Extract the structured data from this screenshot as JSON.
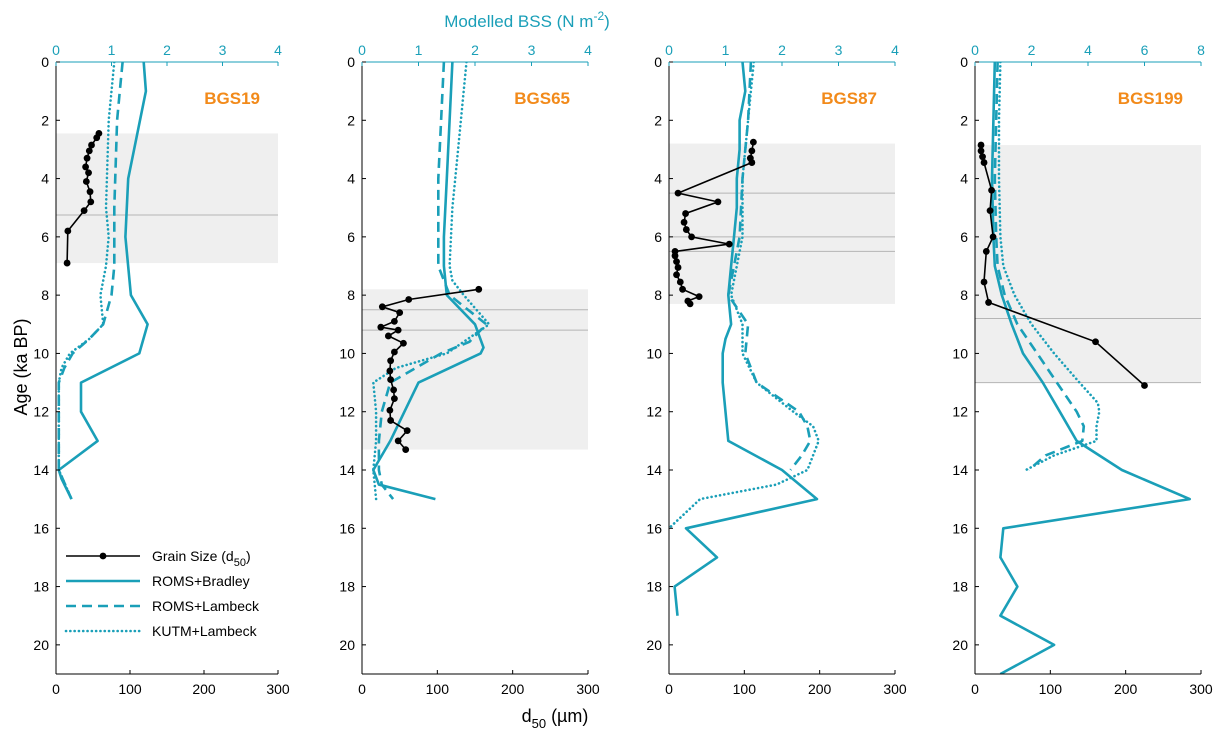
{
  "chart_data": {
    "type": "line",
    "top_axis_label": "Modelled BSS (N m",
    "top_axis_label_sup": "-2",
    "top_axis_label_close": ")",
    "bottom_axis_label": "d",
    "bottom_axis_label_sub": "50",
    "bottom_axis_label_unit": " (µm)",
    "ylabel": "Age (ka BP)",
    "y_range": [
      0,
      21
    ],
    "y_ticks": [
      "0",
      "2",
      "4",
      "6",
      "8",
      "10",
      "12",
      "14",
      "16",
      "18",
      "20"
    ],
    "x_bottom_ticks": [
      "0",
      "100",
      "200",
      "300"
    ],
    "x_bottom_range": [
      0,
      300
    ],
    "legend": {
      "placement": "bottom-left",
      "entries": [
        {
          "label": "Grain Size (d",
          "sub": "50",
          "tail": ")",
          "style": "grain"
        },
        {
          "label": "ROMS+Bradley",
          "sub": "",
          "tail": "",
          "style": "solid"
        },
        {
          "label": "ROMS+Lambeck",
          "sub": "",
          "tail": "",
          "style": "dashed"
        },
        {
          "label": "KUTM+Lambeck",
          "sub": "",
          "tail": "",
          "style": "dotted"
        }
      ]
    },
    "colors": {
      "model": "#1a9fb8",
      "grain": "#000000",
      "shade": "#efefef",
      "site": "#f28a1a"
    },
    "panels": [
      {
        "site": "BGS19",
        "top_ticks": [
          "0",
          "1",
          "2",
          "3",
          "4"
        ],
        "top_range": [
          0,
          4
        ],
        "shade": [
          2.45,
          6.9
        ],
        "hlines": [
          5.25
        ],
        "grain_size": {
          "age": [
            2.45,
            2.6,
            2.85,
            3.05,
            3.3,
            3.6,
            3.8,
            4.1,
            4.45,
            4.8,
            5.1,
            5.8,
            6.9
          ],
          "d50": [
            58,
            55,
            48,
            45,
            42,
            40,
            44,
            41,
            46,
            47,
            38,
            16,
            15
          ]
        },
        "roms_bradley": {
          "age": [
            0,
            1,
            4,
            6,
            8,
            9,
            10,
            11,
            12,
            13,
            14,
            14.3,
            15
          ],
          "bss": [
            1.58,
            1.62,
            1.3,
            1.25,
            1.35,
            1.65,
            1.5,
            0.45,
            0.45,
            0.75,
            0.05,
            0.1,
            0.28
          ]
        },
        "roms_lambeck": {
          "age": [
            0,
            1,
            2,
            5,
            7,
            8,
            9,
            9.5,
            10,
            10.5,
            11,
            12,
            13,
            14,
            15
          ],
          "bss": [
            1.2,
            1.15,
            1.1,
            1.05,
            1.05,
            1.0,
            0.85,
            0.6,
            0.3,
            0.15,
            0.05,
            0.05,
            0.05,
            0.05,
            0.28
          ]
        },
        "kutm_lambeck": {
          "age": [
            0,
            1,
            2,
            5,
            6,
            7,
            8,
            9,
            9.5,
            10,
            10.5,
            11,
            12,
            13,
            14,
            15
          ],
          "bss": [
            1.05,
            1.0,
            0.95,
            0.9,
            0.95,
            0.9,
            0.8,
            0.85,
            0.6,
            0.25,
            0.1,
            0.05,
            0.05,
            0.05,
            0.05,
            0.28
          ]
        }
      },
      {
        "site": "BGS65",
        "top_ticks": [
          "0",
          "1",
          "2",
          "3",
          "4"
        ],
        "top_range": [
          0,
          4
        ],
        "shade": [
          7.8,
          13.3
        ],
        "hlines": [
          8.5,
          9.2
        ],
        "grain_size": {
          "age": [
            7.8,
            8.15,
            8.4,
            8.6,
            8.9,
            9.1,
            9.2,
            9.4,
            9.65,
            9.95,
            10.25,
            10.6,
            10.9,
            11.25,
            11.55,
            11.95,
            12.3,
            12.65,
            13.0,
            13.3
          ],
          "d50": [
            155,
            62,
            27,
            50,
            43,
            25,
            48,
            35,
            55,
            43,
            38,
            37,
            38,
            42,
            43,
            37,
            38,
            60,
            48,
            58
          ]
        },
        "roms_bradley": {
          "age": [
            0,
            2,
            4,
            6,
            7,
            8,
            9,
            9.8,
            10,
            11,
            13,
            14,
            14.5,
            15
          ],
          "bss": [
            1.6,
            1.55,
            1.5,
            1.45,
            1.45,
            1.5,
            2.0,
            2.15,
            2.1,
            1.0,
            0.5,
            0.2,
            0.3,
            1.3
          ]
        },
        "roms_lambeck": {
          "age": [
            0,
            2,
            4,
            6,
            7,
            8,
            9,
            9.6,
            10,
            11,
            12,
            13,
            14,
            14.5,
            15
          ],
          "bss": [
            1.45,
            1.4,
            1.35,
            1.35,
            1.35,
            1.55,
            2.2,
            1.9,
            1.4,
            0.5,
            0.35,
            0.3,
            0.3,
            0.35,
            0.55
          ]
        },
        "kutm_lambeck": {
          "age": [
            0,
            1,
            3,
            5,
            7,
            7.5,
            8,
            9,
            10,
            10.5,
            11,
            12,
            13,
            14,
            15
          ],
          "bss": [
            1.85,
            1.8,
            1.7,
            1.6,
            1.55,
            1.6,
            1.8,
            2.25,
            1.5,
            0.6,
            0.2,
            0.25,
            0.25,
            0.2,
            0.25
          ]
        }
      },
      {
        "site": "BGS87",
        "top_ticks": [
          "0",
          "1",
          "2",
          "3",
          "4"
        ],
        "top_range": [
          0,
          4
        ],
        "shade": [
          2.8,
          8.3
        ],
        "hlines": [
          4.5,
          6.0,
          6.5
        ],
        "grain_size": {
          "age": [
            2.75,
            3.05,
            3.3,
            3.45,
            4.5,
            4.8,
            5.2,
            5.5,
            5.75,
            6.0,
            6.25,
            6.5,
            6.65,
            6.85,
            7.05,
            7.3,
            7.55,
            7.8,
            8.05,
            8.2,
            8.3
          ],
          "d50": [
            112,
            110,
            108,
            110,
            12,
            65,
            22,
            20,
            23,
            30,
            80,
            8,
            8,
            10,
            12,
            10,
            15,
            18,
            40,
            25,
            28
          ]
        },
        "roms_bradley": {
          "age": [
            0,
            1,
            2,
            3,
            4,
            5,
            6,
            7,
            8,
            9,
            9.5,
            10,
            11,
            13,
            14,
            15,
            16,
            17,
            18,
            19
          ],
          "bss": [
            1.3,
            1.35,
            1.25,
            1.25,
            1.2,
            1.2,
            1.15,
            1.1,
            1.05,
            1.1,
            1.0,
            0.95,
            0.95,
            1.05,
            2.0,
            2.62,
            0.3,
            0.85,
            0.1,
            0.15
          ]
        },
        "roms_lambeck": {
          "age": [
            0,
            2,
            4,
            6,
            7,
            8,
            9,
            10,
            11,
            12,
            12.5,
            13,
            13.5,
            14
          ],
          "bss": [
            1.45,
            1.4,
            1.3,
            1.25,
            1.15,
            1.05,
            1.4,
            1.35,
            1.55,
            2.3,
            2.45,
            2.5,
            2.35,
            2.15
          ]
        },
        "kutm_lambeck": {
          "age": [
            0,
            1,
            2,
            4,
            6,
            7,
            8,
            9,
            10,
            11,
            12,
            12.5,
            13,
            14,
            14.5,
            15,
            16
          ],
          "bss": [
            1.5,
            1.45,
            1.4,
            1.3,
            1.3,
            1.2,
            1.1,
            1.3,
            1.3,
            1.55,
            2.2,
            2.55,
            2.65,
            2.45,
            1.9,
            0.55,
            0.0
          ]
        }
      },
      {
        "site": "BGS199",
        "top_ticks": [
          "0",
          "2",
          "4",
          "6",
          "8"
        ],
        "top_range": [
          0,
          8
        ],
        "shade": [
          2.85,
          11.0
        ],
        "hlines": [
          8.8,
          11.0
        ],
        "grain_size": {
          "age": [
            2.85,
            3.05,
            3.25,
            3.45,
            4.4,
            5.1,
            6.0,
            6.5,
            7.55,
            8.25,
            9.6,
            11.1
          ],
          "d50": [
            8,
            8,
            10,
            12,
            22,
            20,
            24,
            15,
            12,
            18,
            160,
            225
          ]
        },
        "roms_bradley": {
          "age": [
            0,
            2,
            4,
            6,
            7,
            8,
            9,
            10,
            11,
            12,
            13,
            14,
            15,
            16,
            17,
            18,
            19,
            20,
            21
          ],
          "bss": [
            0.7,
            0.65,
            0.6,
            0.65,
            0.7,
            0.95,
            1.3,
            1.7,
            2.4,
            3.0,
            3.6,
            5.2,
            7.6,
            1.0,
            0.9,
            1.5,
            0.9,
            2.8,
            0.9
          ]
        },
        "roms_lambeck": {
          "age": [
            0,
            2,
            4,
            6,
            7,
            8,
            9,
            10,
            11,
            12,
            12.5,
            13,
            13.5,
            14
          ],
          "bss": [
            0.8,
            0.75,
            0.7,
            0.75,
            0.8,
            1.05,
            1.5,
            2.2,
            2.9,
            3.6,
            3.85,
            3.8,
            2.5,
            1.9
          ]
        },
        "kutm_lambeck": {
          "age": [
            0,
            2,
            4,
            6,
            7,
            8,
            9,
            10,
            11,
            11.7,
            12,
            12.5,
            13,
            13.5,
            14
          ],
          "bss": [
            0.9,
            0.85,
            0.85,
            0.9,
            1.0,
            1.4,
            2.0,
            2.8,
            3.7,
            4.35,
            4.4,
            4.3,
            4.3,
            2.8,
            1.8
          ]
        }
      }
    ]
  }
}
